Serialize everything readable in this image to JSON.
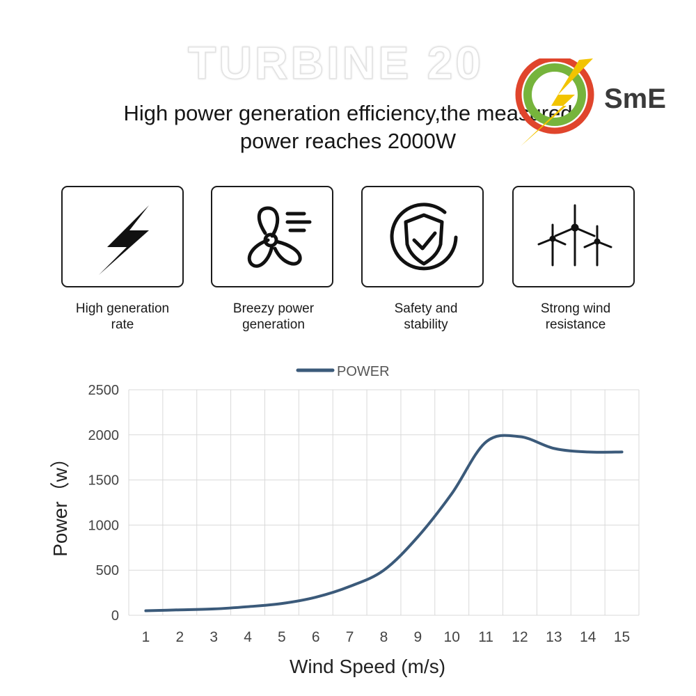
{
  "hero": {
    "title": "TURBINE 20",
    "subtitle_line1": "High power generation efficiency,the measured",
    "subtitle_line2": "power reaches 2000W"
  },
  "logo": {
    "text": "SmE",
    "ring_color": "#e0452c",
    "inner_color": "#76b43c",
    "bolt_color": "#f2c400"
  },
  "features": [
    {
      "icon": "lightning-icon",
      "label_line1": "High generation",
      "label_line2": "rate"
    },
    {
      "icon": "fan-blade-icon",
      "label_line1": "Breezy power",
      "label_line2": "generation"
    },
    {
      "icon": "shield-check-icon",
      "label_line1": "Safety and",
      "label_line2": "stability"
    },
    {
      "icon": "wind-turbines-icon",
      "label_line1": "Strong wind",
      "label_line2": "resistance"
    }
  ],
  "chart_data": {
    "type": "line",
    "title": "",
    "xlabel": "Wind Speed (m/s)",
    "ylabel": "Power（w）",
    "x": [
      1,
      2,
      3,
      4,
      5,
      6,
      7,
      8,
      9,
      10,
      11,
      12,
      13,
      14,
      15
    ],
    "series": [
      {
        "name": "POWER",
        "color": "#3b5a7a",
        "values": [
          50,
          60,
          70,
          95,
          130,
          200,
          320,
          500,
          870,
          1350,
          1920,
          1980,
          1850,
          1810,
          1810
        ]
      }
    ],
    "xticks": [
      "1",
      "2",
      "3",
      "4",
      "5",
      "6",
      "7",
      "8",
      "9",
      "10",
      "11",
      "12",
      "13",
      "14",
      "15"
    ],
    "yticks": [
      "0",
      "500",
      "1000",
      "1500",
      "2000",
      "2500"
    ],
    "ylim": [
      0,
      2500
    ],
    "grid": true,
    "legend_position": "top-center"
  }
}
